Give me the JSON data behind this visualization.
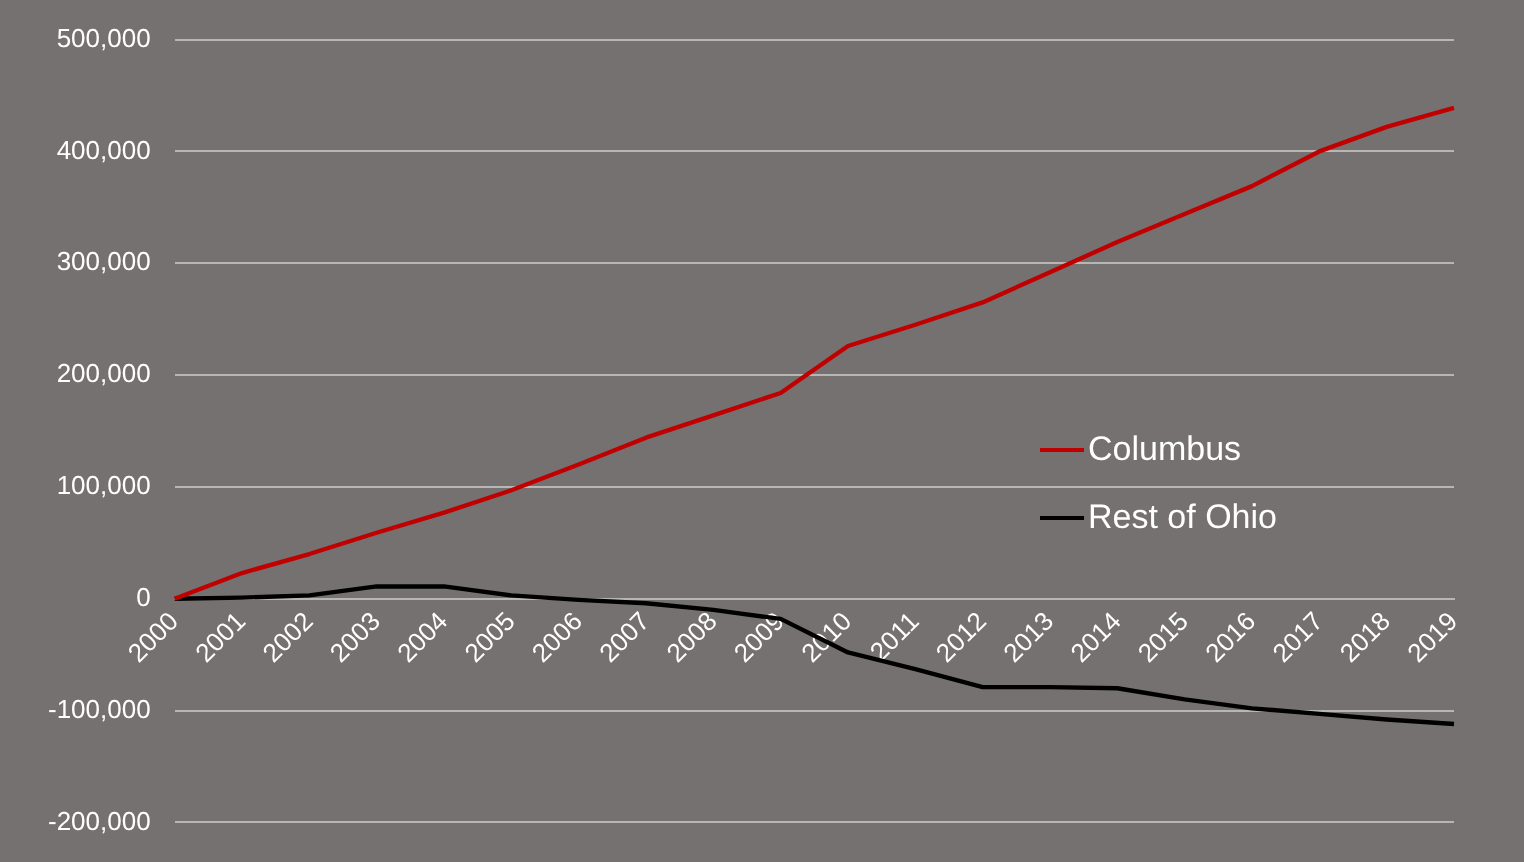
{
  "chart_data": {
    "type": "line",
    "categories": [
      "2000",
      "2001",
      "2002",
      "2003",
      "2004",
      "2005",
      "2006",
      "2007",
      "2008",
      "2009",
      "2010",
      "2011",
      "2012",
      "2013",
      "2014",
      "2015",
      "2016",
      "2017",
      "2018",
      "2019"
    ],
    "series": [
      {
        "name": "Columbus",
        "color": "#c00000",
        "values": [
          0,
          23000,
          40000,
          59000,
          77000,
          97000,
          120000,
          144000,
          164000,
          184000,
          226000,
          245000,
          265000,
          292000,
          319000,
          344000,
          369000,
          400000,
          422000,
          439000
        ]
      },
      {
        "name": "Rest of Ohio",
        "color": "#000000",
        "values": [
          0,
          1000,
          3000,
          11000,
          11000,
          3000,
          -1000,
          -4000,
          -10000,
          -18000,
          -48000,
          -63000,
          -79000,
          -79000,
          -80000,
          -90000,
          -98000,
          -103000,
          -108000,
          -112000
        ]
      }
    ],
    "ylim": [
      -200000,
      500000
    ],
    "yticks": [
      {
        "value": -200000,
        "label": "-200,000"
      },
      {
        "value": -100000,
        "label": "-100,000"
      },
      {
        "value": 0,
        "label": "0"
      },
      {
        "value": 100000,
        "label": "100,000"
      },
      {
        "value": 200000,
        "label": "200,000"
      },
      {
        "value": 300000,
        "label": "300,000"
      },
      {
        "value": 400000,
        "label": "400,000"
      },
      {
        "value": 500000,
        "label": "500,000"
      }
    ],
    "grid": "y",
    "legend": "right",
    "marker": "none",
    "line_style": "solid"
  }
}
